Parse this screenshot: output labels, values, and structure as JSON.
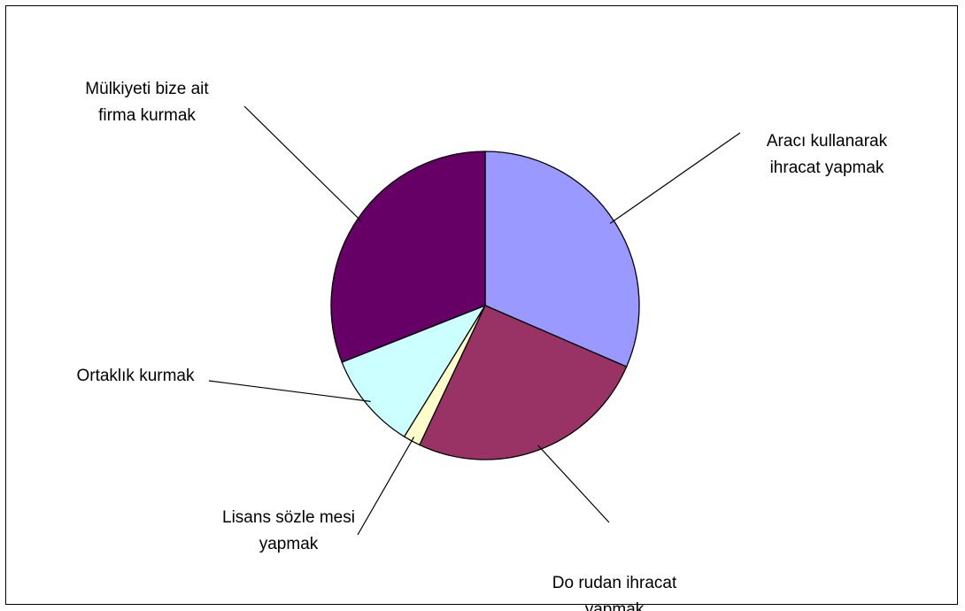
{
  "chart_data": {
    "type": "pie",
    "title": "",
    "categories": [
      "Aracı kullanarak ihracat yapmak",
      "Do rudan ihracat yapmak",
      "Lisans sözle mesi yapmak",
      "Ortaklık kurmak",
      "Mülkiyeti bize ait firma kurmak"
    ],
    "values": [
      31.5,
      25.5,
      1.8,
      10.2,
      31.0
    ],
    "colors": [
      "#9999ff",
      "#993366",
      "#ffffcc",
      "#ccffff",
      "#660066"
    ],
    "label_lines": [
      [
        "Aracı kullanarak",
        "ihracat yapmak"
      ],
      [
        "Do  rudan ihracat",
        "yapmak"
      ],
      [
        "Lisans sözle  mesi",
        "yapmak"
      ],
      [
        "Ortaklık kurmak"
      ],
      [
        "Mülkiyeti bize ait",
        "firma kurmak"
      ]
    ],
    "legend": "none",
    "start_angle_deg": 0,
    "direction": "clockwise"
  }
}
